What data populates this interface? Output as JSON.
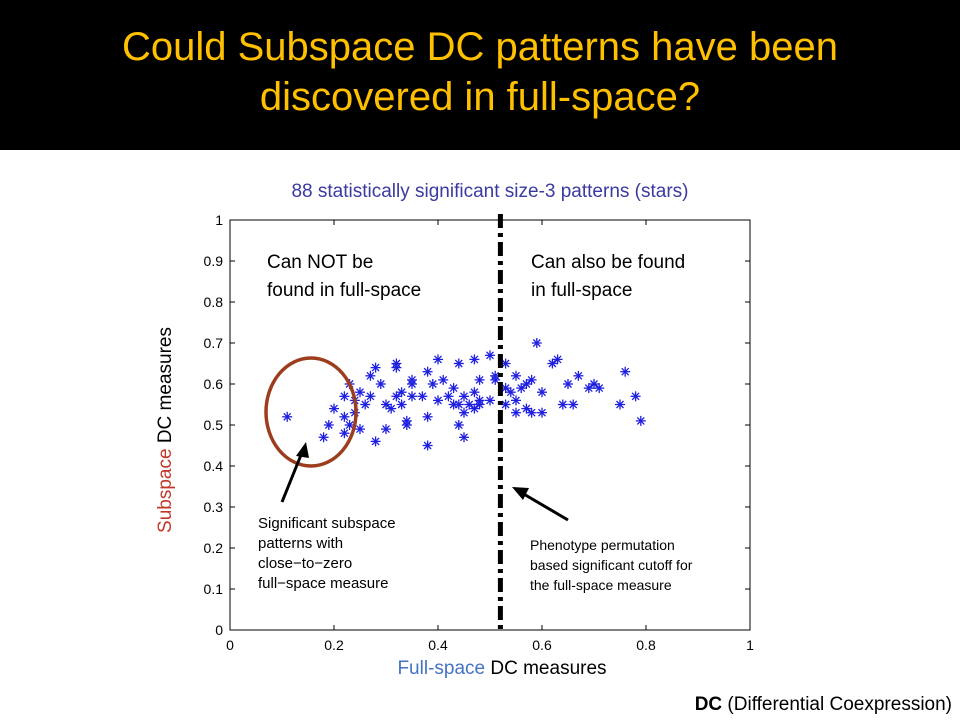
{
  "slide": {
    "title": "Could Subspace DC patterns have been\ndiscovered in full-space?",
    "footnote_bold": "DC",
    "footnote_rest": " (Differential Coexpression)"
  },
  "colors": {
    "title_bg": "#000000",
    "title_text": "#ffc000",
    "chart_title": "#3a3aa0",
    "accent_red": "#c0392b",
    "accent_blue": "#4472c4",
    "stars": "#1f1fe0",
    "circle": "#9c3d1e"
  },
  "chart_data": {
    "type": "scatter",
    "title": "88 statistically significant size-3 patterns (stars)",
    "xlabel": {
      "accent": "Full-space",
      "rest": " DC measures"
    },
    "ylabel": {
      "accent": "Subspace",
      "rest": " DC measures"
    },
    "xlim": [
      0,
      1
    ],
    "ylim": [
      0,
      1
    ],
    "xticks": [
      "0",
      "0.2",
      "0.4",
      "0.6",
      "0.8",
      "1"
    ],
    "yticks": [
      "0",
      "0.1",
      "0.2",
      "0.3",
      "0.4",
      "0.5",
      "0.6",
      "0.7",
      "0.8",
      "0.9",
      "1"
    ],
    "grid": false,
    "marker": "star",
    "cutoff_x": 0.52,
    "region_left_label": [
      "Can NOT be",
      "found in full-space"
    ],
    "region_right_label": [
      "Can also be found",
      "in full-space"
    ],
    "annotation_left": [
      "Significant subspace",
      "patterns with",
      "close−to−zero",
      "full−space measure"
    ],
    "annotation_right": [
      "Phenotype permutation",
      "based significant cutoff for",
      "the full-space measure"
    ],
    "points": [
      [
        0.11,
        0.52
      ],
      [
        0.18,
        0.47
      ],
      [
        0.19,
        0.5
      ],
      [
        0.2,
        0.54
      ],
      [
        0.22,
        0.48
      ],
      [
        0.22,
        0.52
      ],
      [
        0.22,
        0.57
      ],
      [
        0.23,
        0.5
      ],
      [
        0.24,
        0.53
      ],
      [
        0.24,
        0.56
      ],
      [
        0.23,
        0.6
      ],
      [
        0.25,
        0.49
      ],
      [
        0.25,
        0.58
      ],
      [
        0.26,
        0.55
      ],
      [
        0.27,
        0.57
      ],
      [
        0.27,
        0.62
      ],
      [
        0.28,
        0.64
      ],
      [
        0.28,
        0.46
      ],
      [
        0.29,
        0.6
      ],
      [
        0.3,
        0.49
      ],
      [
        0.3,
        0.55
      ],
      [
        0.31,
        0.54
      ],
      [
        0.32,
        0.57
      ],
      [
        0.32,
        0.64
      ],
      [
        0.32,
        0.65
      ],
      [
        0.33,
        0.55
      ],
      [
        0.33,
        0.58
      ],
      [
        0.34,
        0.51
      ],
      [
        0.34,
        0.5
      ],
      [
        0.35,
        0.57
      ],
      [
        0.35,
        0.6
      ],
      [
        0.35,
        0.61
      ],
      [
        0.37,
        0.57
      ],
      [
        0.38,
        0.45
      ],
      [
        0.38,
        0.52
      ],
      [
        0.38,
        0.63
      ],
      [
        0.39,
        0.6
      ],
      [
        0.4,
        0.66
      ],
      [
        0.4,
        0.56
      ],
      [
        0.41,
        0.61
      ],
      [
        0.42,
        0.57
      ],
      [
        0.43,
        0.55
      ],
      [
        0.43,
        0.59
      ],
      [
        0.44,
        0.65
      ],
      [
        0.44,
        0.5
      ],
      [
        0.44,
        0.55
      ],
      [
        0.45,
        0.53
      ],
      [
        0.45,
        0.47
      ],
      [
        0.45,
        0.57
      ],
      [
        0.46,
        0.55
      ],
      [
        0.47,
        0.58
      ],
      [
        0.47,
        0.54
      ],
      [
        0.47,
        0.66
      ],
      [
        0.48,
        0.61
      ],
      [
        0.48,
        0.56
      ],
      [
        0.48,
        0.55
      ],
      [
        0.5,
        0.67
      ],
      [
        0.5,
        0.56
      ],
      [
        0.51,
        0.61
      ],
      [
        0.51,
        0.62
      ],
      [
        0.53,
        0.59
      ],
      [
        0.53,
        0.65
      ],
      [
        0.53,
        0.55
      ],
      [
        0.54,
        0.58
      ],
      [
        0.55,
        0.56
      ],
      [
        0.55,
        0.53
      ],
      [
        0.55,
        0.62
      ],
      [
        0.56,
        0.59
      ],
      [
        0.57,
        0.54
      ],
      [
        0.57,
        0.6
      ],
      [
        0.58,
        0.53
      ],
      [
        0.58,
        0.61
      ],
      [
        0.59,
        0.7
      ],
      [
        0.6,
        0.58
      ],
      [
        0.6,
        0.53
      ],
      [
        0.62,
        0.65
      ],
      [
        0.63,
        0.66
      ],
      [
        0.64,
        0.55
      ],
      [
        0.65,
        0.6
      ],
      [
        0.66,
        0.55
      ],
      [
        0.67,
        0.62
      ],
      [
        0.69,
        0.59
      ],
      [
        0.7,
        0.6
      ],
      [
        0.71,
        0.59
      ],
      [
        0.75,
        0.55
      ],
      [
        0.76,
        0.63
      ],
      [
        0.78,
        0.57
      ],
      [
        0.79,
        0.51
      ]
    ]
  }
}
